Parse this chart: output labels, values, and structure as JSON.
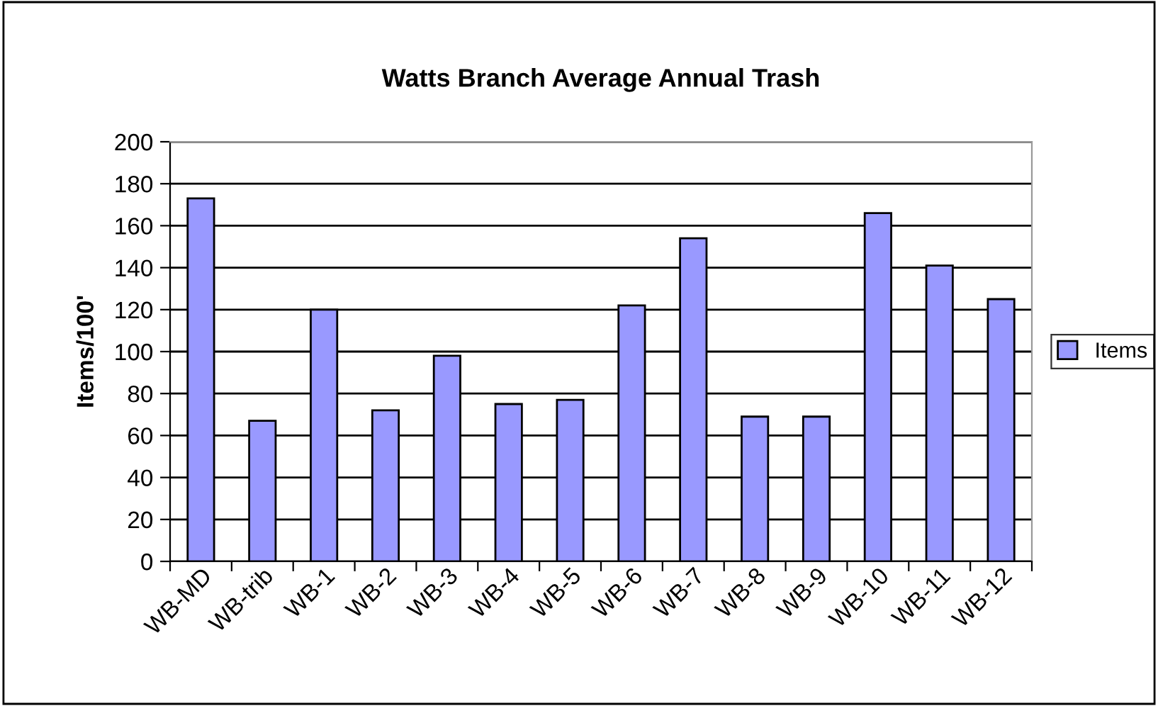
{
  "chart_data": {
    "type": "bar",
    "title": "Watts Branch Average Annual Trash",
    "ylabel": "Items/100'",
    "categories": [
      "WB-MD",
      "WB-trib",
      "WB-1",
      "WB-2",
      "WB-3",
      "WB-4",
      "WB-5",
      "WB-6",
      "WB-7",
      "WB-8",
      "WB-9",
      "WB-10",
      "WB-11",
      "WB-12"
    ],
    "series": [
      {
        "name": "Items",
        "color": "#9999ff",
        "values": [
          173,
          67,
          120,
          72,
          98,
          75,
          77,
          122,
          154,
          69,
          69,
          166,
          141,
          125
        ]
      }
    ],
    "ylim": [
      0,
      200
    ],
    "yticks": [
      0,
      20,
      40,
      60,
      80,
      100,
      120,
      140,
      160,
      180,
      200
    ],
    "grid": "y",
    "legend": "right"
  }
}
